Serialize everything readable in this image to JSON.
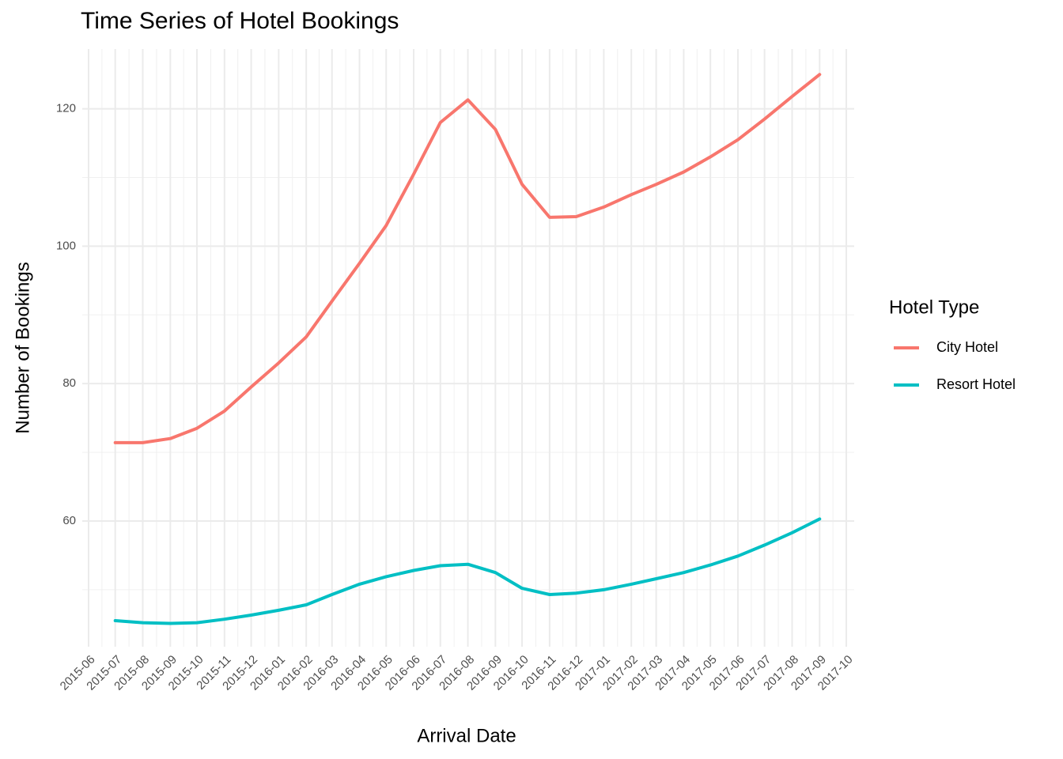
{
  "chart_data": {
    "type": "line",
    "title": "Time Series of Hotel Bookings",
    "x_label": "Arrival Date",
    "y_label": "Number of Bookings",
    "legend_title": "Hotel Type",
    "x": [
      "2015-07",
      "2015-08",
      "2015-09",
      "2015-10",
      "2015-11",
      "2015-12",
      "2016-01",
      "2016-02",
      "2016-03",
      "2016-04",
      "2016-05",
      "2016-06",
      "2016-07",
      "2016-08",
      "2016-09",
      "2016-10",
      "2016-11",
      "2016-12",
      "2017-01",
      "2017-02",
      "2017-03",
      "2017-04",
      "2017-05",
      "2017-06",
      "2017-07",
      "2017-08",
      "2017-09"
    ],
    "series": [
      {
        "name": "City Hotel",
        "color": "#f8766d",
        "values": [
          71.4,
          71.4,
          72.0,
          73.5,
          76,
          79.5,
          83,
          86.8,
          92,
          97.5,
          103,
          110.5,
          118,
          121.3,
          117,
          109,
          104.2,
          104.3,
          105.7,
          107.5,
          109,
          110.8,
          113,
          115.5,
          118.5,
          121.8,
          125
        ]
      },
      {
        "name": "Resort Hotel",
        "color": "#00bfc4",
        "values": [
          45.5,
          45.2,
          45.1,
          45.2,
          45.7,
          46.3,
          47.0,
          47.8,
          49.3,
          50.8,
          51.9,
          52.8,
          53.5,
          53.7,
          52.5,
          50.2,
          49.3,
          49.5,
          50.0,
          50.8,
          51.6,
          52.5,
          53.6,
          54.9,
          56.5,
          58.3,
          60.3
        ]
      }
    ],
    "xlim": [
      "2015-06",
      "2017-10"
    ],
    "xticks": [
      "2015-06",
      "2015-07",
      "2015-08",
      "2015-09",
      "2015-10",
      "2015-11",
      "2015-12",
      "2016-01",
      "2016-02",
      "2016-03",
      "2016-04",
      "2016-05",
      "2016-06",
      "2016-07",
      "2016-08",
      "2016-09",
      "2016-10",
      "2016-11",
      "2016-12",
      "2017-01",
      "2017-02",
      "2017-03",
      "2017-04",
      "2017-05",
      "2017-06",
      "2017-07",
      "2017-08",
      "2017-09",
      "2017-10"
    ],
    "ylim": [
      41.7,
      128.7
    ],
    "yticks": [
      60,
      80,
      100,
      120
    ],
    "grid": true,
    "legend": "right"
  }
}
